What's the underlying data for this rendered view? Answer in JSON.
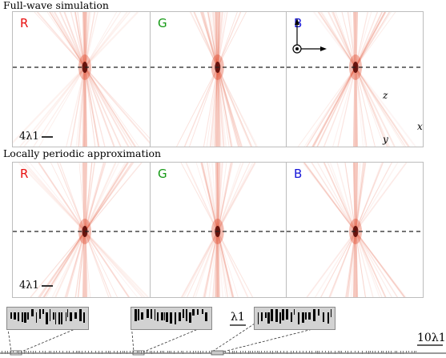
{
  "top_section": {
    "title": "Full-wave simulation",
    "panels": [
      {
        "letter": "R",
        "color": "#e81010"
      },
      {
        "letter": "G",
        "color": "#159a15"
      },
      {
        "letter": "B",
        "color": "#1515d8"
      }
    ],
    "scale_label": "4λ1"
  },
  "bottom_section": {
    "title": "Locally periodic approximation",
    "panels": [
      {
        "letter": "R",
        "color": "#e81010"
      },
      {
        "letter": "G",
        "color": "#159a15"
      },
      {
        "letter": "B",
        "color": "#1515d8"
      }
    ],
    "scale_label": "4λ1"
  },
  "axes": {
    "z": "z",
    "x": "x",
    "y": "y"
  },
  "inset_scale_label": "λ1",
  "full_scale_label": "10λ1",
  "colors": {
    "field": "#e04020",
    "panel_border": "#bdbdbd",
    "inset_gray": "#d2d2d2"
  }
}
